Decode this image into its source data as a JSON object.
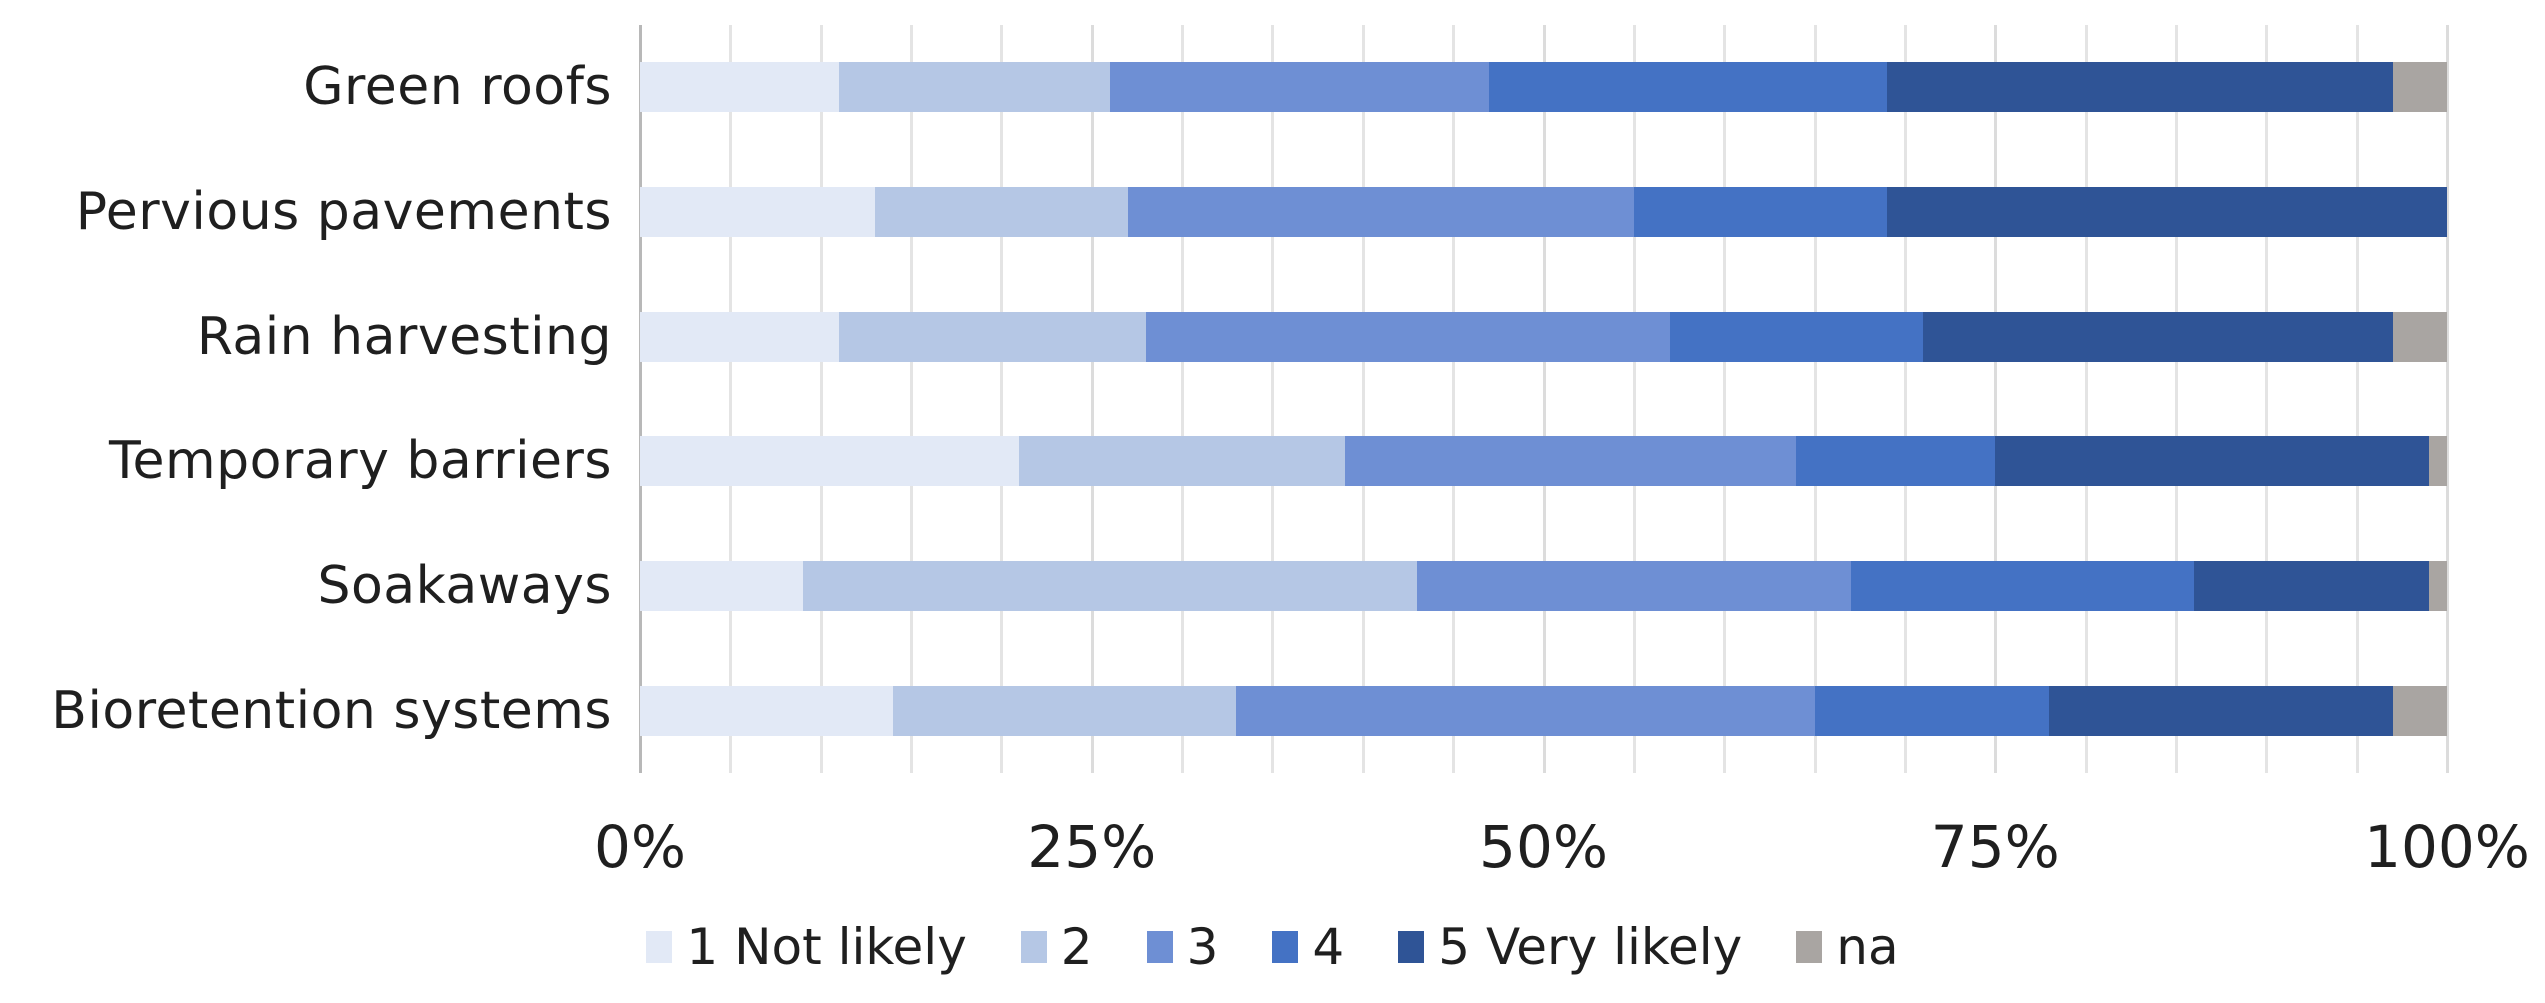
{
  "chart_data": {
    "type": "bar",
    "orientation": "horizontal",
    "stacked": true,
    "title": "",
    "xlabel": "",
    "ylabel": "",
    "unit": "percent",
    "xlim": [
      0,
      100
    ],
    "grid": {
      "minor_step": 5,
      "major_step": 25,
      "visible": true
    },
    "legend_position": "bottom",
    "categories": [
      "Green roofs",
      "Pervious pavements",
      "Rain harvesting",
      "Temporary barriers",
      "Soakaways",
      "Bioretention systems"
    ],
    "series": [
      {
        "name": "1 Not likely",
        "color": "#e2e9f6",
        "values": [
          11,
          13,
          11,
          21,
          9,
          14
        ]
      },
      {
        "name": "2",
        "color": "#b5c7e5",
        "values": [
          15,
          14,
          17,
          18,
          34,
          19
        ]
      },
      {
        "name": "3",
        "color": "#6e8fd4",
        "values": [
          21,
          28,
          29,
          25,
          24,
          32
        ]
      },
      {
        "name": "4",
        "color": "#4472c4",
        "values": [
          22,
          14,
          14,
          11,
          19,
          13
        ]
      },
      {
        "name": "5 Very likely",
        "color": "#2f5496",
        "values": [
          28,
          31,
          26,
          24,
          13,
          19
        ]
      },
      {
        "name": "na",
        "color": "#a9a5a2",
        "values": [
          3,
          0,
          3,
          1,
          1,
          3
        ]
      }
    ],
    "x_ticks": [
      {
        "label": "0%",
        "value": 0
      },
      {
        "label": "25%",
        "value": 25
      },
      {
        "label": "50%",
        "value": 50
      },
      {
        "label": "75%",
        "value": 75
      },
      {
        "label": "100%",
        "value": 100
      }
    ]
  }
}
